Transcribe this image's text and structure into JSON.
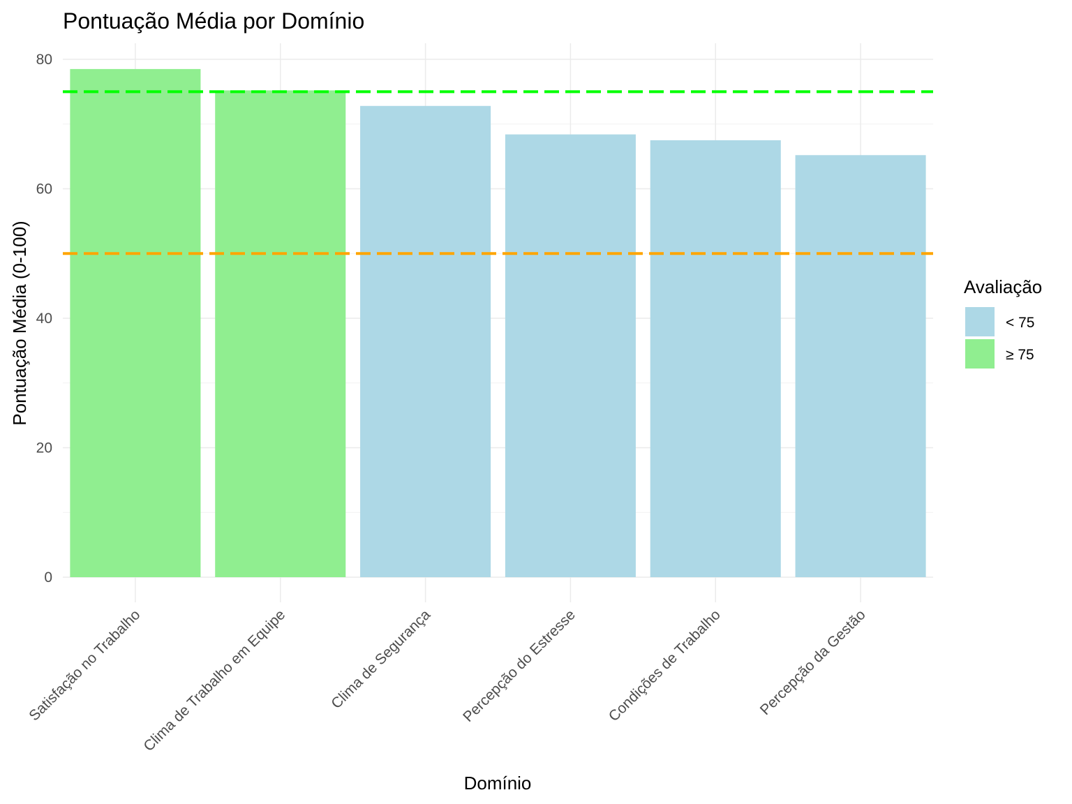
{
  "chart_data": {
    "type": "bar",
    "title": "Pontuação Média por Domínio",
    "xlabel": "Domínio",
    "ylabel": "Pontuação Média (0-100)",
    "categories": [
      "Satisfação no Trabalho",
      "Clima de Trabalho em Equipe",
      "Clima de Segurança",
      "Percepção do Estresse",
      "Condições de Trabalho",
      "Percepção da Gestão"
    ],
    "values": [
      78.5,
      75.2,
      72.8,
      68.4,
      67.5,
      65.2
    ],
    "groups": [
      "≥ 75",
      "≥ 75",
      "< 75",
      "< 75",
      "< 75",
      "< 75"
    ],
    "ylim": [
      0,
      80
    ],
    "yticks": [
      0,
      20,
      40,
      60,
      80
    ],
    "reference_lines": [
      {
        "value": 75,
        "color": "#00ff00",
        "style": "dashed"
      },
      {
        "value": 50,
        "color": "#ffa500",
        "style": "dashed"
      }
    ],
    "legend": {
      "title": "Avaliação",
      "position": "right",
      "entries": [
        {
          "label": "< 75",
          "color": "#add8e6"
        },
        {
          "label": "≥ 75",
          "color": "#90ee90"
        }
      ]
    },
    "grid": true
  }
}
